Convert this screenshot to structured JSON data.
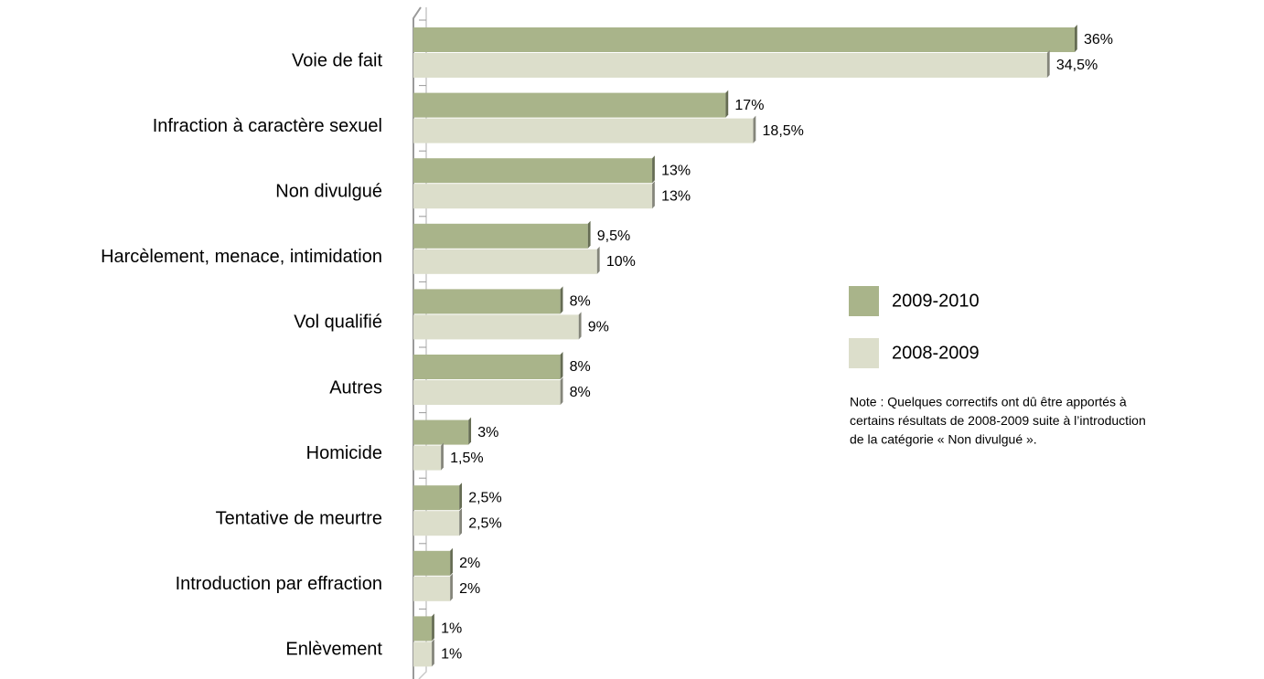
{
  "chart_data": {
    "type": "bar",
    "orientation": "horizontal",
    "categories": [
      "Voie de fait",
      "Infraction à caractère sexuel",
      "Non divulgué",
      "Harcèlement, menace, intimidation",
      "Vol qualifié",
      "Autres",
      "Homicide",
      "Tentative de meurtre",
      "Introduction par effraction",
      "Enlèvement"
    ],
    "series": [
      {
        "name": "2009-2010",
        "color": "#a9b48a",
        "values": [
          36,
          17,
          13,
          9.5,
          8,
          8,
          3,
          2.5,
          2,
          1
        ],
        "value_labels": [
          "36%",
          "17%",
          "13%",
          "9,5%",
          "8%",
          "8%",
          "3%",
          "2,5%",
          "2%",
          "1%"
        ]
      },
      {
        "name": "2008-2009",
        "color": "#dcdecb",
        "values": [
          34.5,
          18.5,
          13,
          10,
          9,
          8,
          1.5,
          2.5,
          2,
          1
        ],
        "value_labels": [
          "34,5%",
          "18,5%",
          "13%",
          "10%",
          "9%",
          "8%",
          "1,5%",
          "2,5%",
          "2%",
          "1%"
        ]
      }
    ],
    "xlim": [
      0,
      36
    ],
    "legend": "right",
    "note": [
      "Note : Quelques correctifs ont dû être apportés à",
      "certains résultats de 2008-2009 suite à  l’introduction",
      "de la catégorie « Non divulgué »."
    ]
  }
}
